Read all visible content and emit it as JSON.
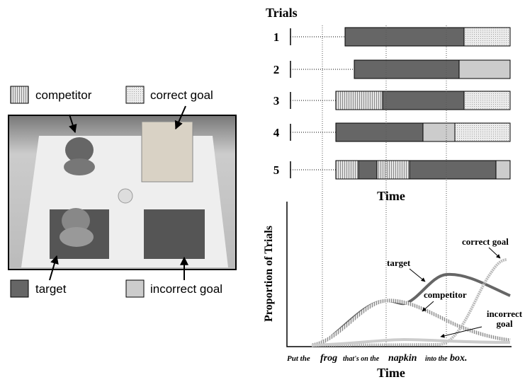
{
  "legend": {
    "competitor": "competitor",
    "correct_goal": "correct goal",
    "target": "target",
    "incorrect_goal": "incorrect goal"
  },
  "trials": {
    "title": "Trials",
    "rows": [
      "1",
      "2",
      "3",
      "4",
      "5"
    ],
    "x_label": "Time"
  },
  "plot": {
    "y_label": "Proportion of Trials",
    "x_label": "Time",
    "labels": {
      "correct_goal": "correct goal",
      "target": "target",
      "competitor": "competitor",
      "incorrect_goal": [
        "incorrect",
        "goal"
      ]
    },
    "sentence": [
      "Put the",
      "frog",
      "that's on the",
      "napkin",
      "into the",
      "box."
    ]
  }
}
